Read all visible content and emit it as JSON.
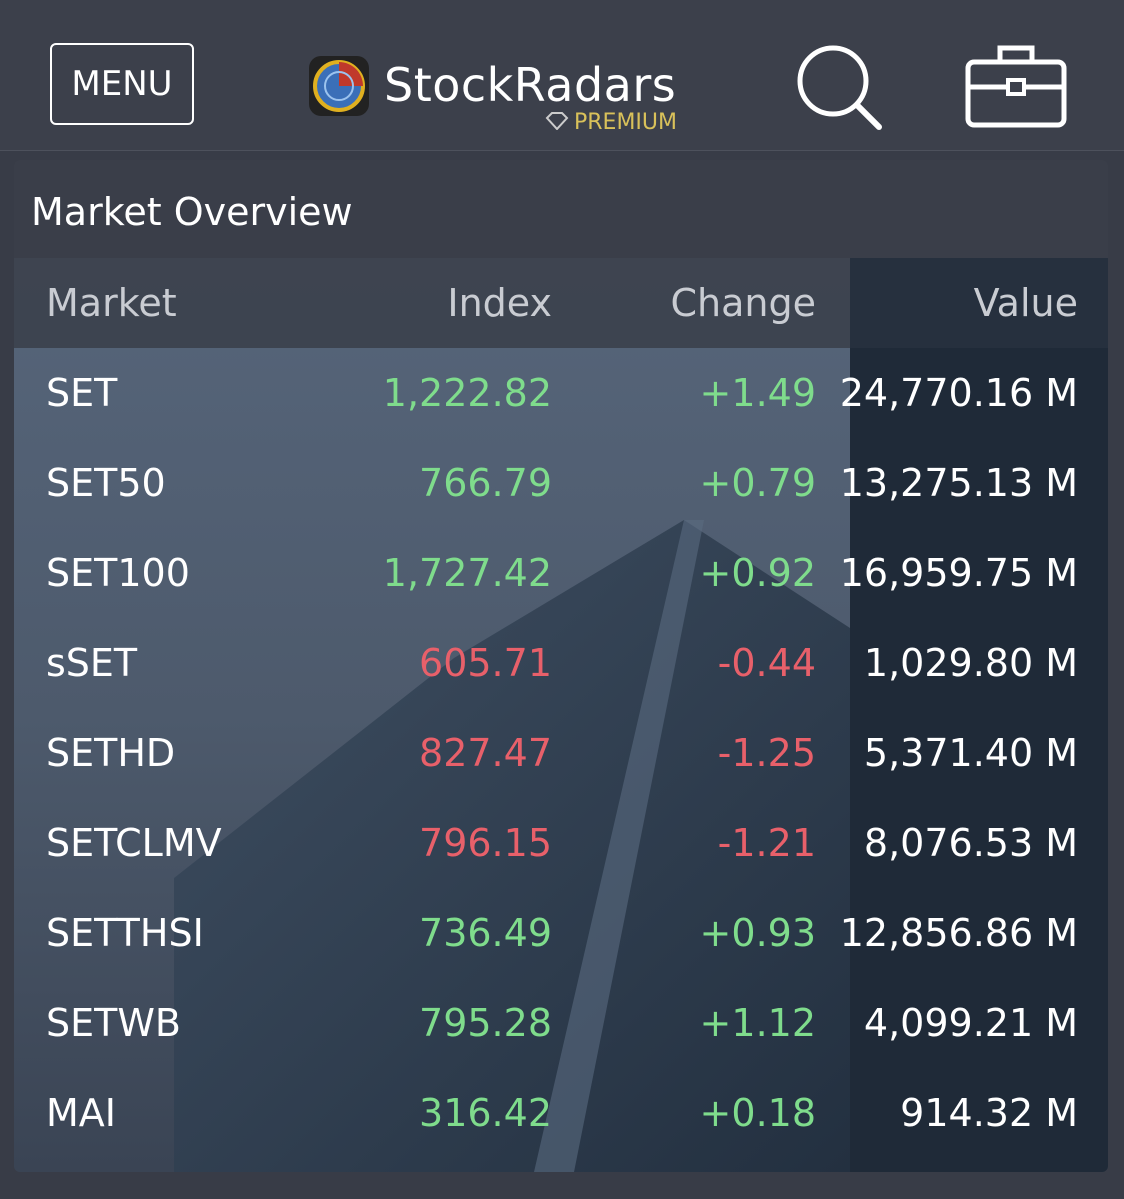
{
  "header": {
    "menu": "MENU",
    "brand": "StockRadars",
    "badge": "PREMIUM"
  },
  "panel": {
    "title": "Market Overview"
  },
  "table": {
    "columns": [
      "Market",
      "Index",
      "Change",
      "Value"
    ],
    "rows": [
      [
        "SET",
        "1,222.82",
        "+1.49",
        "24,770.16 M"
      ],
      [
        "SET50",
        "766.79",
        "+0.79",
        "13,275.13 M"
      ],
      [
        "SET100",
        "1,727.42",
        "+0.92",
        "16,959.75 M"
      ],
      [
        "sSET",
        "605.71",
        "-0.44",
        "1,029.80 M"
      ],
      [
        "SETHD",
        "827.47",
        "-1.25",
        "5,371.40 M"
      ],
      [
        "SETCLMV",
        "796.15",
        "-1.21",
        "8,076.53 M"
      ],
      [
        "SETTHSI",
        "736.49",
        "+0.93",
        "12,856.86 M"
      ],
      [
        "SETWB",
        "795.28",
        "+1.12",
        "4,099.21 M"
      ],
      [
        "MAI",
        "316.42",
        "+0.18",
        "914.32 M"
      ]
    ]
  }
}
